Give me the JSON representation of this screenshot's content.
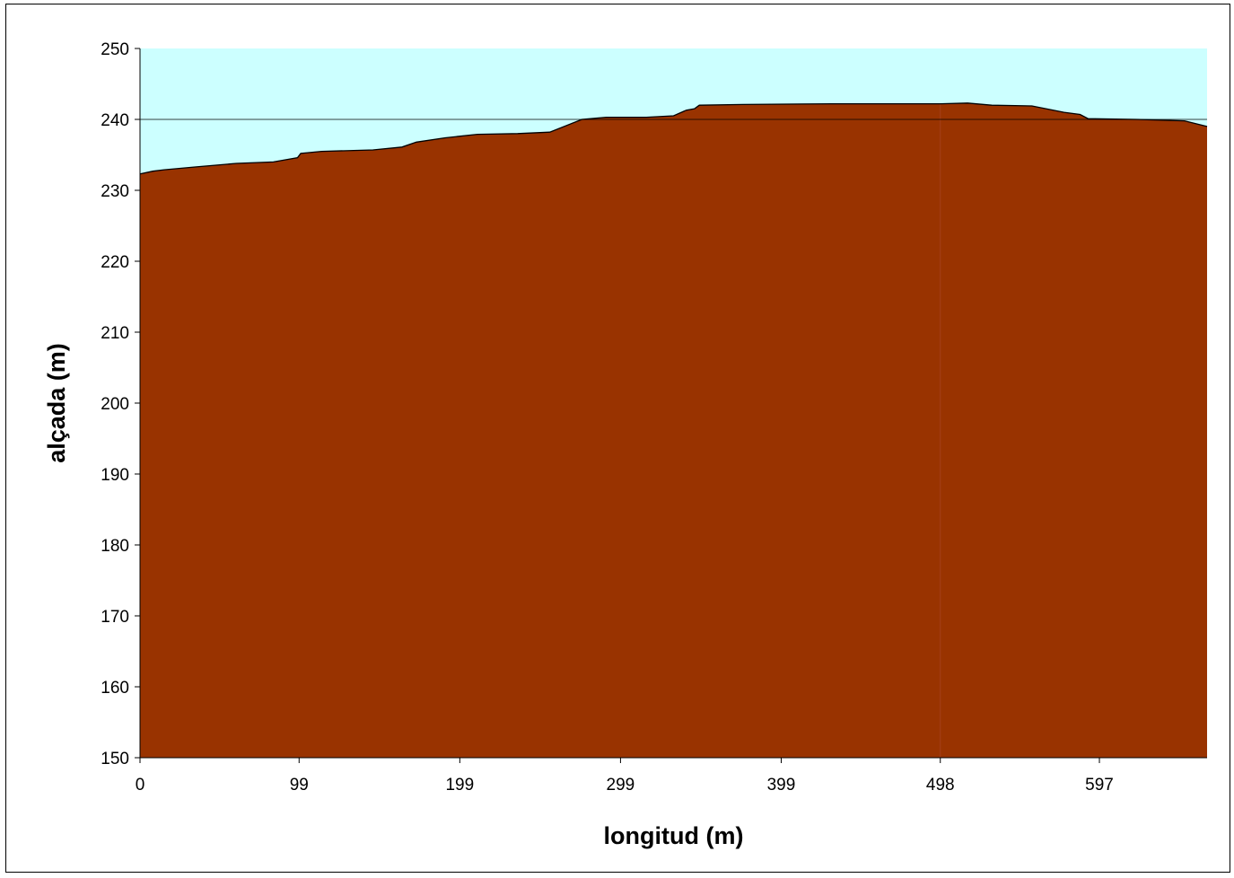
{
  "chart_data": {
    "type": "area",
    "title": "",
    "xlabel": "longitud (m)",
    "ylabel": "alçada (m)",
    "xlim": [
      0,
      664
    ],
    "ylim": [
      150,
      250
    ],
    "y_ticks": [
      150,
      160,
      170,
      180,
      190,
      200,
      210,
      220,
      230,
      240,
      250
    ],
    "x_ticks": [
      0,
      99,
      199,
      299,
      399,
      498,
      597
    ],
    "grid": "horizontal at 240 only",
    "legend": "none",
    "colors": {
      "plot_background": "#ccffff",
      "fill": "#993300",
      "line": "#000000"
    },
    "series": [
      {
        "x": [
          0,
          8,
          15,
          35,
          60,
          83,
          98,
          100,
          113,
          145,
          163,
          172,
          190,
          210,
          235,
          255,
          275,
          290,
          315,
          332,
          340,
          345,
          348,
          375,
          430,
          470,
          498,
          515,
          530,
          555,
          575,
          585,
          590,
          620,
          650,
          664
        ],
        "y": [
          232.3,
          232.7,
          232.9,
          233.3,
          233.8,
          234.0,
          234.6,
          235.2,
          235.5,
          235.7,
          236.1,
          236.8,
          237.4,
          237.9,
          238.0,
          238.2,
          240.0,
          240.3,
          240.3,
          240.5,
          241.3,
          241.5,
          242.0,
          242.1,
          242.2,
          242.2,
          242.2,
          242.3,
          242.0,
          241.9,
          241.0,
          240.7,
          240.1,
          240.0,
          239.8,
          239.0
        ]
      }
    ]
  }
}
